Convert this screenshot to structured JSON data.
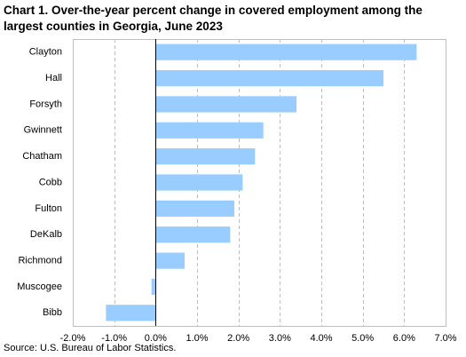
{
  "chart_data": {
    "type": "bar",
    "orientation": "horizontal",
    "title": "Chart 1. Over-the-year percent change in covered employment among the largest counties in Georgia, June 2023",
    "categories": [
      "Clayton",
      "Hall",
      "Forsyth",
      "Gwinnett",
      "Chatham",
      "Cobb",
      "Fulton",
      "DeKalb",
      "Richmond",
      "Muscogee",
      "Bibb"
    ],
    "values": [
      6.3,
      5.5,
      3.4,
      2.6,
      2.4,
      2.1,
      1.9,
      1.8,
      0.7,
      -0.1,
      -1.2
    ],
    "xlim": [
      -2.0,
      7.0
    ],
    "xticks": [
      "-2.0%",
      "-1.0%",
      "0.0%",
      "1.0%",
      "2.0%",
      "3.0%",
      "4.0%",
      "5.0%",
      "6.0%",
      "7.0%"
    ],
    "xlabel": "",
    "ylabel": "",
    "grid": "vertical dashed",
    "bar_color": "#99ccff",
    "source": "Source: U.S. Bureau of Labor Statistics."
  }
}
